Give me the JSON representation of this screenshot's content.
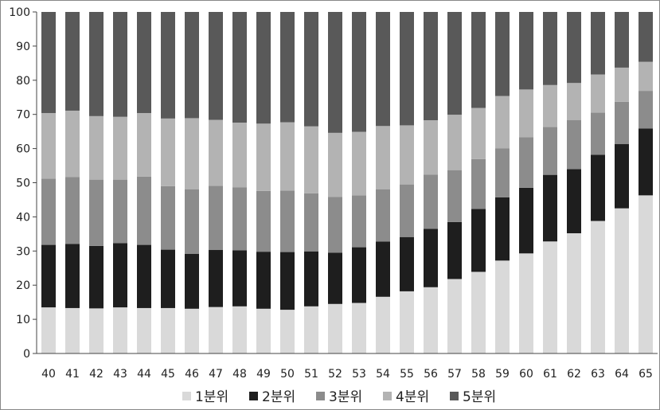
{
  "chart_data": {
    "type": "bar",
    "stacked": true,
    "categories": [
      "40",
      "41",
      "42",
      "43",
      "44",
      "45",
      "46",
      "47",
      "48",
      "49",
      "50",
      "51",
      "52",
      "53",
      "54",
      "55",
      "56",
      "57",
      "58",
      "59",
      "60",
      "61",
      "62",
      "63",
      "64",
      "65"
    ],
    "series": [
      {
        "name": "1분위",
        "color": "#d9d9d9",
        "values": [
          13.5,
          13.3,
          13.2,
          13.5,
          13.3,
          13.3,
          13.1,
          13.6,
          13.8,
          13.1,
          12.8,
          13.8,
          14.5,
          14.8,
          16.6,
          18.2,
          19.4,
          21.8,
          23.9,
          27.2,
          29.3,
          32.8,
          35.2,
          38.8,
          42.5,
          46.3
        ]
      },
      {
        "name": "2분위",
        "color": "#1e1e1e",
        "values": [
          18.3,
          18.8,
          18.3,
          18.8,
          18.5,
          17.1,
          16.1,
          16.7,
          16.4,
          16.7,
          16.9,
          16.1,
          15.0,
          16.3,
          16.2,
          15.9,
          17.1,
          16.7,
          18.4,
          18.5,
          19.2,
          19.5,
          18.8,
          19.4,
          18.8,
          19.6
        ]
      },
      {
        "name": "3분위",
        "color": "#8c8c8c",
        "values": [
          19.4,
          19.6,
          19.4,
          18.6,
          20.0,
          18.6,
          18.9,
          18.8,
          18.4,
          17.8,
          18.0,
          17.0,
          16.3,
          15.2,
          15.3,
          15.4,
          15.9,
          15.2,
          14.6,
          14.4,
          14.8,
          14.0,
          14.3,
          12.3,
          12.4,
          11.0
        ]
      },
      {
        "name": "4분위",
        "color": "#b3b3b3",
        "values": [
          19.2,
          19.4,
          18.6,
          18.4,
          18.6,
          19.8,
          20.8,
          19.3,
          19.0,
          19.7,
          20.0,
          19.6,
          18.8,
          18.6,
          18.5,
          17.3,
          15.9,
          16.2,
          15.0,
          15.3,
          14.0,
          12.3,
          10.9,
          11.2,
          10.0,
          8.5
        ]
      },
      {
        "name": "5분위",
        "color": "#595959",
        "values": [
          29.6,
          28.9,
          30.5,
          30.7,
          29.6,
          31.2,
          31.1,
          31.6,
          32.4,
          32.7,
          32.3,
          33.5,
          35.4,
          35.1,
          33.4,
          33.2,
          31.7,
          30.1,
          28.1,
          24.6,
          22.7,
          21.4,
          20.8,
          18.3,
          16.3,
          14.6
        ]
      }
    ],
    "yticks": [
      "0",
      "10",
      "20",
      "30",
      "40",
      "50",
      "60",
      "70",
      "80",
      "90",
      "100"
    ],
    "ylim": [
      0,
      100
    ],
    "legend_position": "bottom",
    "grid": false
  }
}
